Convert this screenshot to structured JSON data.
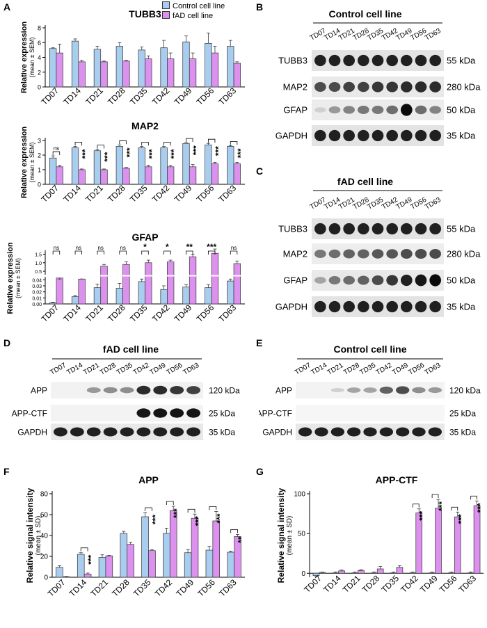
{
  "panels": {
    "A": "A",
    "B": "B",
    "C": "C",
    "D": "D",
    "E": "E",
    "F": "F",
    "G": "G"
  },
  "legend": {
    "control": "Control cell line",
    "fad": "fAD cell line"
  },
  "colors": {
    "control": "#a9cdee",
    "fad": "#dd91ee",
    "stroke": "#333333"
  },
  "days": [
    "TD07",
    "TD14",
    "TD21",
    "TD28",
    "TD35",
    "TD42",
    "TD49",
    "TD56",
    "TD63"
  ],
  "axis": {
    "expression_label": "Relative expression",
    "expression_sub": "(mean ± SEM)",
    "signal_label": "Relative signal intensity",
    "signal_sub": "(mean ± SD)"
  },
  "blot_b": {
    "title": "Control cell line",
    "bands": [
      {
        "name": "TUBB3",
        "kda": "55 kDa"
      },
      {
        "name": "MAP2",
        "kda": "280 kDa"
      },
      {
        "name": "GFAP",
        "kda": "50 kDa"
      },
      {
        "name": "GAPDH",
        "kda": "35 kDa"
      }
    ]
  },
  "blot_c": {
    "title": "fAD cell line",
    "bands": [
      {
        "name": "TUBB3",
        "kda": "55 kDa"
      },
      {
        "name": "MAP2",
        "kda": "280 kDa"
      },
      {
        "name": "GFAP",
        "kda": "50 kDa"
      },
      {
        "name": "GAPDH",
        "kda": "35 kDa"
      }
    ]
  },
  "blot_d": {
    "title": "fAD cell line",
    "bands": [
      {
        "name": "APP",
        "kda": "120 kDa"
      },
      {
        "name": "APP-CTF",
        "kda": "25 kDa"
      },
      {
        "name": "GAPDH",
        "kda": "35 kDa"
      }
    ]
  },
  "blot_e": {
    "title": "Control cell line",
    "bands": [
      {
        "name": "APP",
        "kda": "120 kDa"
      },
      {
        "name": "APP-CTF",
        "kda": "25 kDa"
      },
      {
        "name": "GAPDH",
        "kda": "35 kDa"
      }
    ]
  },
  "chart_data": [
    {
      "id": "tubb3",
      "type": "bar",
      "title": "TUBB3",
      "ylabel": "Relative expression (mean ± SEM)",
      "ylim": [
        0,
        8
      ],
      "ticks": [
        0,
        2,
        4,
        6,
        8
      ],
      "categories": [
        "TD07",
        "TD14",
        "TD21",
        "TD28",
        "TD35",
        "TD42",
        "TD49",
        "TD56",
        "TD63"
      ],
      "series": [
        {
          "name": "Control cell line",
          "values": [
            5.2,
            6.2,
            5.1,
            5.5,
            5.0,
            5.3,
            6.1,
            5.9,
            5.5
          ],
          "errors": [
            0.1,
            0.3,
            0.4,
            0.5,
            0.4,
            1.0,
            0.8,
            1.4,
            0.8
          ]
        },
        {
          "name": "fAD cell line",
          "values": [
            4.6,
            3.4,
            3.4,
            3.5,
            3.8,
            3.8,
            3.8,
            4.6,
            3.2
          ],
          "errors": [
            1.2,
            0.2,
            0.1,
            0.1,
            0.4,
            0.8,
            0.8,
            0.9,
            0.2
          ]
        }
      ]
    },
    {
      "id": "map2",
      "type": "bar",
      "title": "MAP2",
      "ylabel": "Relative expression (mean ± SEM)",
      "ylim": [
        0,
        3
      ],
      "ticks": [
        0,
        1,
        2,
        3
      ],
      "categories": [
        "TD07",
        "TD14",
        "TD21",
        "TD28",
        "TD35",
        "TD42",
        "TD49",
        "TD56",
        "TD63"
      ],
      "series": [
        {
          "name": "Control cell line",
          "values": [
            1.8,
            2.5,
            2.3,
            2.6,
            2.5,
            2.5,
            2.8,
            2.7,
            2.6
          ],
          "errors": [
            0.15,
            0.1,
            0.1,
            0.1,
            0.1,
            0.1,
            0.05,
            0.1,
            0.05
          ]
        },
        {
          "name": "fAD cell line",
          "values": [
            1.2,
            1.0,
            1.0,
            1.1,
            1.2,
            1.2,
            1.2,
            1.4,
            1.4
          ],
          "errors": [
            0.1,
            0.05,
            0.05,
            0.05,
            0.1,
            0.1,
            0.15,
            0.1,
            0.1
          ]
        }
      ],
      "significance": [
        "ns",
        "***",
        "***",
        "***",
        "***",
        "***",
        "***",
        "***",
        "***"
      ]
    },
    {
      "id": "gfap",
      "type": "bar",
      "title": "GFAP",
      "ylabel": "Relative expression (mean ± SEM)",
      "axis_break": true,
      "ticks_upper": [
        "1.5",
        "1.0",
        "0.5"
      ],
      "ticks_lower": [
        "0.04",
        "0.03",
        "0.02",
        "0.01",
        "0.00"
      ],
      "categories": [
        "TD07",
        "TD14",
        "TD21",
        "TD28",
        "TD35",
        "TD42",
        "TD49",
        "TD56",
        "TD63"
      ],
      "series": [
        {
          "name": "Control cell line",
          "values": [
            0.002,
            0.012,
            0.027,
            0.026,
            0.037,
            0.024,
            0.028,
            0.027,
            0.038
          ],
          "errors": [
            0.001,
            0.002,
            0.006,
            0.008,
            0.01,
            0.006,
            0.004,
            0.005,
            0.008
          ]
        },
        {
          "name": "fAD cell line",
          "values": [
            0.043,
            0.046,
            0.8,
            0.9,
            1.0,
            1.05,
            1.35,
            1.55,
            0.95
          ],
          "errors": [
            0.003,
            0.004,
            0.1,
            0.15,
            0.15,
            0.1,
            0.15,
            0.25,
            0.15
          ]
        }
      ],
      "significance": [
        "ns",
        "ns",
        "ns",
        "ns",
        "*",
        "*",
        "**",
        "***",
        "ns"
      ]
    },
    {
      "id": "app",
      "type": "bar",
      "title": "APP",
      "ylabel": "Relative signal intensity (mean ± SD)",
      "ylim": [
        0,
        80
      ],
      "ticks": [
        0,
        20,
        40,
        60,
        80
      ],
      "categories": [
        "TD07",
        "TD14",
        "TD21",
        "TD28",
        "TD35",
        "TD42",
        "TD49",
        "TD56",
        "TD63"
      ],
      "series": [
        {
          "name": "Control cell line",
          "values": [
            9.5,
            22,
            19,
            42,
            58,
            42,
            23.5,
            26,
            24
          ],
          "errors": [
            1.5,
            1.5,
            2.5,
            2,
            4,
            5,
            3,
            3.5,
            1
          ]
        },
        {
          "name": "fAD cell line",
          "values": [
            0.5,
            3,
            20.5,
            31.5,
            25.5,
            64,
            56.5,
            54,
            39
          ],
          "errors": [
            0.3,
            1,
            0.5,
            2,
            1,
            4,
            4,
            9,
            2
          ]
        }
      ],
      "significance": [
        "",
        "***",
        "",
        "",
        "***",
        "***",
        "***",
        "***",
        "**"
      ]
    },
    {
      "id": "appctf",
      "type": "bar",
      "title": "APP-CTF",
      "ylabel": "Relative signal intensity (mean ± SD)",
      "ylim": [
        -5,
        100
      ],
      "ticks": [
        0,
        50,
        100
      ],
      "categories": [
        "TD07",
        "TD14",
        "TD21",
        "TD28",
        "TD35",
        "TD42",
        "TD49",
        "TD56",
        "TD63"
      ],
      "series": [
        {
          "name": "Control cell line",
          "values": [
            -3,
            0.5,
            0.5,
            0.5,
            0.5,
            0.5,
            0.5,
            0.5,
            0.5
          ],
          "errors": [
            1,
            1,
            1,
            1,
            1,
            1,
            1,
            1,
            1
          ]
        },
        {
          "name": "fAD cell line",
          "values": [
            1,
            3,
            3.5,
            5.5,
            7.5,
            76,
            82,
            71,
            85
          ],
          "errors": [
            0.5,
            1,
            1,
            3,
            2,
            5,
            11,
            6,
            6
          ]
        }
      ],
      "significance": [
        "",
        "",
        "",
        "",
        "",
        "***",
        "***",
        "***",
        "***"
      ]
    }
  ]
}
